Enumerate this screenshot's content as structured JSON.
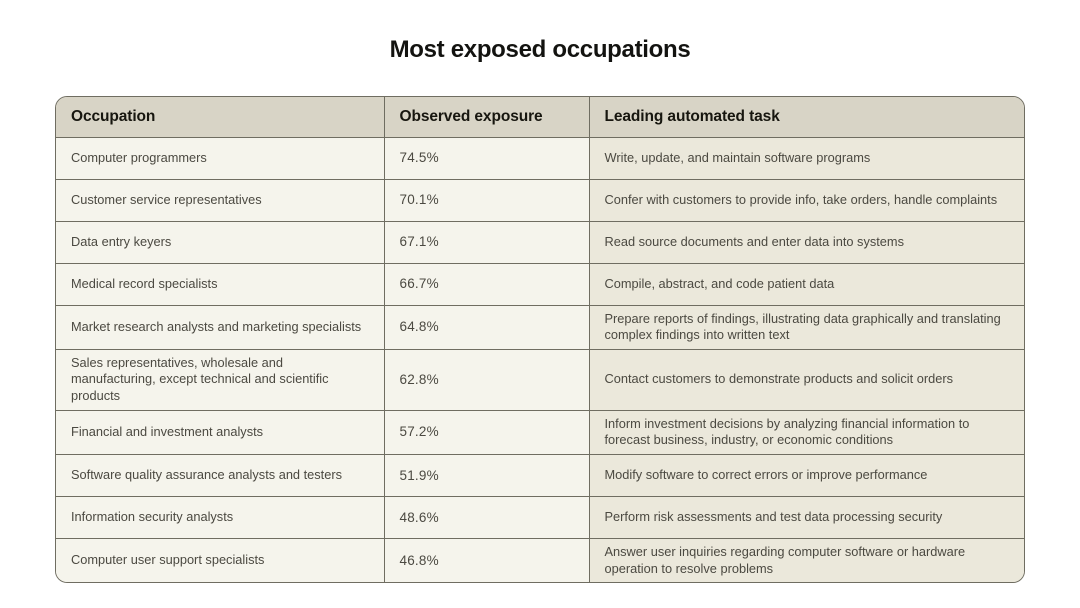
{
  "title": "Most exposed occupations",
  "chart_data": {
    "type": "table",
    "title": "Most exposed occupations",
    "columns": [
      "Occupation",
      "Observed exposure",
      "Leading automated task"
    ],
    "rows": [
      {
        "occupation": "Computer programmers",
        "exposure": "74.5%",
        "task": "Write, update, and maintain software programs"
      },
      {
        "occupation": "Customer service representatives",
        "exposure": "70.1%",
        "task": "Confer with customers to provide info, take orders, handle complaints"
      },
      {
        "occupation": "Data entry keyers",
        "exposure": "67.1%",
        "task": "Read source documents and enter data into systems"
      },
      {
        "occupation": "Medical record specialists",
        "exposure": "66.7%",
        "task": "Compile, abstract, and code patient data"
      },
      {
        "occupation": "Market research analysts and marketing specialists",
        "exposure": "64.8%",
        "task": "Prepare reports of findings, illustrating data graphically and translating complex findings into written text"
      },
      {
        "occupation": "Sales representatives, wholesale and manufacturing, except technical and scientific products",
        "exposure": "62.8%",
        "task": "Contact customers to demonstrate products and solicit orders"
      },
      {
        "occupation": "Financial and investment analysts",
        "exposure": "57.2%",
        "task": "Inform investment decisions by analyzing financial information to forecast business, industry, or economic conditions"
      },
      {
        "occupation": "Software quality assurance analysts and testers",
        "exposure": "51.9%",
        "task": "Modify software to correct errors or improve performance"
      },
      {
        "occupation": "Information security analysts",
        "exposure": "48.6%",
        "task": "Perform risk assessments and test data processing security"
      },
      {
        "occupation": "Computer user support specialists",
        "exposure": "46.8%",
        "task": "Answer user inquiries regarding computer software or hardware operation to resolve problems"
      }
    ]
  },
  "colors": {
    "page_bg": "#ffffff",
    "header_bg": "#d8d4c6",
    "row_bg": "#f5f4ec",
    "task_bg": "#ebe8db",
    "border": "#6f6d61",
    "title_text": "#131310",
    "header_text": "#17160f",
    "body_text": "#4b4941"
  }
}
